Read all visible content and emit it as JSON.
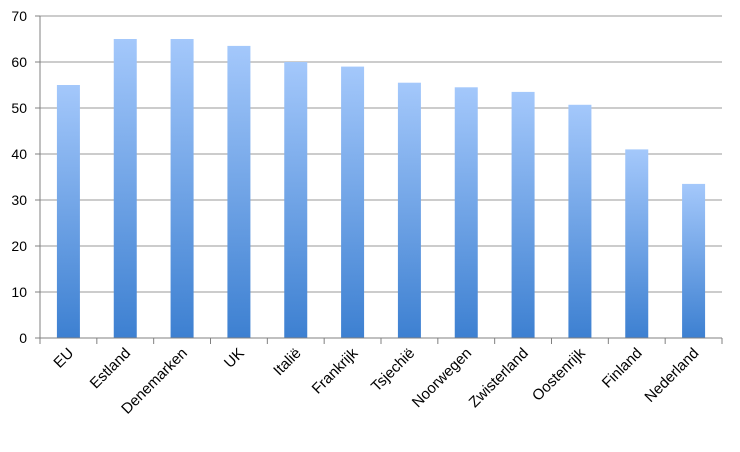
{
  "chart_data": {
    "type": "bar",
    "categories": [
      "EU",
      "Estland",
      "Denemarken",
      "UK",
      "Italië",
      "Frankrijk",
      "Tsjechië",
      "Noorwegen",
      "Zwisterland",
      "Oostenrijk",
      "Finland",
      "Nederland"
    ],
    "series": [
      {
        "values": [
          55,
          65,
          65,
          63.5,
          60,
          59,
          55.5,
          54.5,
          53.5,
          50.7,
          41,
          33.5
        ]
      }
    ],
    "yticks": [
      "0",
      "10",
      "20",
      "30",
      "40",
      "50",
      "60",
      "70"
    ],
    "ylim": [
      0,
      70
    ],
    "grid": true,
    "legend": "none",
    "colors": {
      "bar_top": "#a4c8fb",
      "bar_bottom": "#3d80d1",
      "grid": "#9a9a9a",
      "axis": "#808080"
    }
  }
}
